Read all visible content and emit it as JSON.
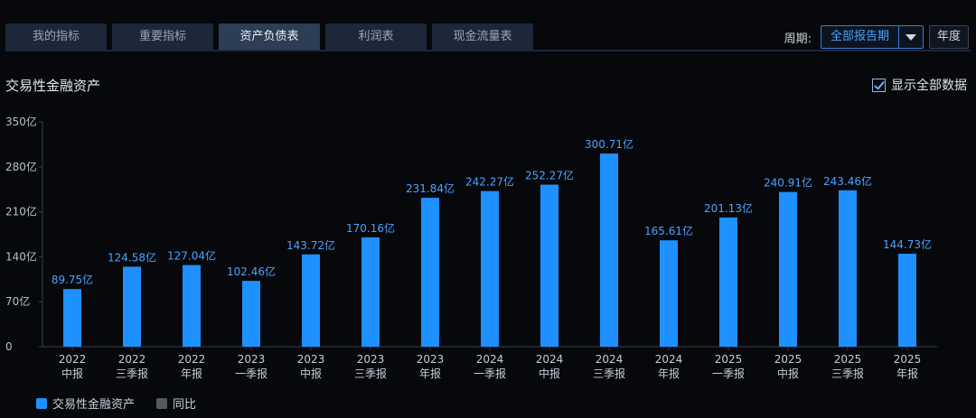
{
  "tabs": [
    {
      "label": "我的指标",
      "active": false
    },
    {
      "label": "重要指标",
      "active": false
    },
    {
      "label": "资产负债表",
      "active": true
    },
    {
      "label": "利润表",
      "active": false
    },
    {
      "label": "现金流量表",
      "active": false
    }
  ],
  "period": {
    "label": "周期:",
    "selected": "全部报告期",
    "year_button": "年度"
  },
  "show_all": {
    "label": "显示全部数据",
    "checked": true
  },
  "colors": {
    "bar": "#1e90ff",
    "label": "#4aa3ff",
    "yoy": "#555a62"
  },
  "chart_data": {
    "type": "bar",
    "title": "交易性金融资产",
    "categories": [
      [
        "2022",
        "中报"
      ],
      [
        "2022",
        "三季报"
      ],
      [
        "2022",
        "年报"
      ],
      [
        "2023",
        "一季报"
      ],
      [
        "2023",
        "中报"
      ],
      [
        "2023",
        "三季报"
      ],
      [
        "2023",
        "年报"
      ],
      [
        "2024",
        "一季报"
      ],
      [
        "2024",
        "中报"
      ],
      [
        "2024",
        "三季报"
      ],
      [
        "2024",
        "年报"
      ],
      [
        "2025",
        "一季报"
      ],
      [
        "2025",
        "中报"
      ],
      [
        "2025",
        "三季报"
      ],
      [
        "2025",
        "年报"
      ]
    ],
    "series": [
      {
        "name": "交易性金融资产",
        "values": [
          89.75,
          124.58,
          127.04,
          102.46,
          143.72,
          170.16,
          231.84,
          242.27,
          252.27,
          300.71,
          165.61,
          201.13,
          240.91,
          243.46,
          144.73
        ],
        "labels": [
          "89.75亿",
          "124.58亿",
          "127.04亿",
          "102.46亿",
          "143.72亿",
          "170.16亿",
          "231.84亿",
          "242.27亿",
          "252.27亿",
          "300.71亿",
          "165.61亿",
          "201.13亿",
          "240.91亿",
          "243.46亿",
          "144.73亿"
        ]
      }
    ],
    "ylim": [
      0,
      350
    ],
    "yticks": [
      0,
      70,
      140,
      210,
      280,
      350
    ],
    "ytick_labels": [
      "0",
      "70亿",
      "140亿",
      "210亿",
      "280亿",
      "350亿"
    ],
    "legend": [
      {
        "name": "交易性金融资产",
        "color": "#1e90ff"
      },
      {
        "name": "同比",
        "color": "#555a62"
      }
    ],
    "legend_position": "bottom-left",
    "grid": false
  }
}
